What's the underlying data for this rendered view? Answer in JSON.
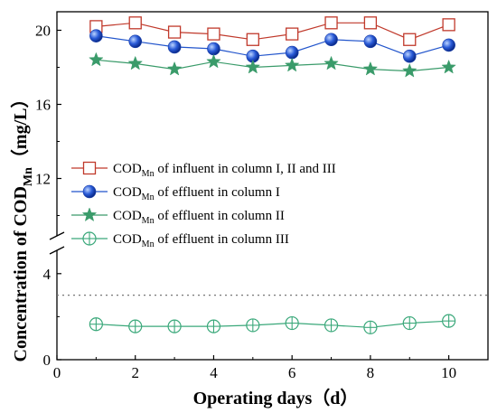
{
  "chart_data": {
    "type": "line",
    "xlabel": "Operating days（d）",
    "ylabel_main": "Concentration of COD",
    "ylabel_sub": "Mn",
    "ylabel_unit": "（mg/L）",
    "x": [
      1,
      2,
      3,
      4,
      5,
      6,
      7,
      8,
      9,
      10
    ],
    "xlim": [
      0,
      11
    ],
    "xticks": [
      0,
      2,
      4,
      6,
      8,
      10
    ],
    "y_axis_break": true,
    "ylim_lower": [
      0,
      5
    ],
    "yticks_lower": [
      0,
      4
    ],
    "ylim_upper": [
      9,
      21
    ],
    "yticks_upper": [
      12,
      16,
      20
    ],
    "reference_line": {
      "y": 3,
      "style": "dotted"
    },
    "grid": false,
    "legend_placement": "center-left",
    "series": [
      {
        "legend_prefix": "COD",
        "legend_sub": "Mn",
        "legend_suffix": " of influent in column I, II and III",
        "marker": "square-open",
        "color": "#c0392b",
        "values": [
          20.2,
          20.4,
          19.9,
          19.8,
          19.5,
          19.8,
          20.4,
          20.4,
          19.5,
          20.3
        ]
      },
      {
        "legend_prefix": "COD",
        "legend_sub": "Mn",
        "legend_suffix": " of effluent in column I",
        "marker": "sphere",
        "color": "#2255cc",
        "values": [
          19.7,
          19.4,
          19.1,
          19.0,
          18.6,
          18.8,
          19.5,
          19.4,
          18.6,
          19.2
        ]
      },
      {
        "legend_prefix": "COD",
        "legend_sub": "Mn",
        "legend_suffix": " of effluent in column II",
        "marker": "star",
        "color": "#3a9b6a",
        "values": [
          18.4,
          18.2,
          17.9,
          18.3,
          18.0,
          18.1,
          18.2,
          17.9,
          17.8,
          18.0
        ]
      },
      {
        "legend_prefix": "COD",
        "legend_sub": "Mn",
        "legend_suffix": " of effluent in column III",
        "marker": "circle-cross",
        "color": "#3aa87a",
        "values": [
          1.65,
          1.55,
          1.55,
          1.55,
          1.6,
          1.7,
          1.6,
          1.5,
          1.7,
          1.8
        ]
      }
    ]
  }
}
